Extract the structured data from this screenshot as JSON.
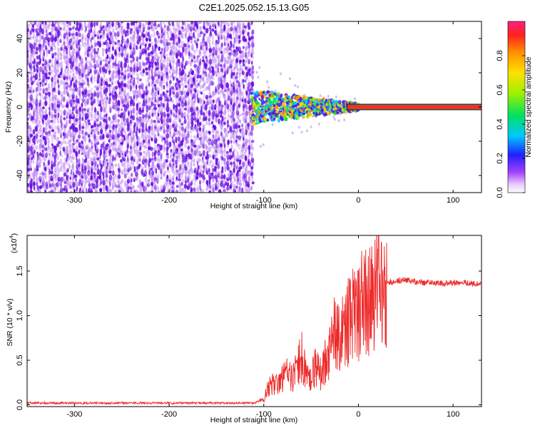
{
  "title": "C2E1.2025.052.15.13.G05",
  "colors": {
    "snr_line": "#ee2a2a",
    "noise": "#7a1fe6",
    "spectral_center": "#ff2a2a"
  },
  "chart_data": [
    {
      "type": "heatmap",
      "title": "C2E1.2025.052.15.13.G05",
      "xlabel": "Height of straight line (km)",
      "ylabel": "Frequency (Hz)",
      "xlim": [
        -350,
        130
      ],
      "ylim": [
        -50,
        50
      ],
      "xticks": [
        -300,
        -200,
        -100,
        0,
        100
      ],
      "xtick_labels": [
        "-300",
        "-200",
        "-100",
        "0",
        "100"
      ],
      "yticks": [
        40,
        20,
        0,
        -20,
        -40
      ],
      "ytick_labels": [
        "40",
        "20",
        "0",
        "-20",
        "-40"
      ],
      "noise_region_x": [
        -350,
        -113
      ],
      "signal_region_x": [
        -113,
        130
      ],
      "signal_center_freq": 0,
      "colorbar": {
        "label": "Normalized spectral amplitude",
        "range": [
          0,
          1
        ],
        "ticks": [
          0.0,
          0.2,
          0.4,
          0.6,
          0.8
        ],
        "tick_labels": [
          "0.0",
          "0.2",
          "0.4",
          "0.6",
          "0.8"
        ]
      }
    },
    {
      "type": "line",
      "xlabel": "Height of straight line (km)",
      "ylabel": "SNR (10 * v/v)",
      "scale_label": "(x10",
      "scale_exp": "4",
      "scale_close": ")",
      "xlim": [
        -350,
        130
      ],
      "ylim": [
        -0.02,
        1.9
      ],
      "xticks": [
        -300,
        -200,
        -100,
        0,
        100
      ],
      "xtick_labels": [
        "-300",
        "-200",
        "-100",
        "0",
        "100"
      ],
      "yticks": [
        0.0,
        0.5,
        1.0,
        1.5
      ],
      "ytick_labels": [
        "0.0",
        "0.5",
        "1.0",
        "1.5"
      ],
      "series": [
        {
          "x": [
            -350,
            -300,
            -250,
            -200,
            -150,
            -110,
            -100,
            -95,
            -90,
            -85,
            -80,
            -75,
            -70,
            -65,
            -60,
            -55,
            -50,
            -45,
            -40,
            -35,
            -30,
            -25,
            -20,
            -15,
            -10,
            -5,
            0,
            5,
            10,
            15,
            20,
            25,
            30,
            40,
            50,
            60,
            70,
            80,
            90,
            100,
            110,
            120,
            130
          ],
          "y": [
            0.02,
            0.02,
            0.02,
            0.02,
            0.02,
            0.02,
            0.06,
            0.2,
            0.25,
            0.22,
            0.3,
            0.35,
            0.3,
            0.4,
            0.55,
            0.3,
            0.28,
            0.45,
            0.35,
            0.5,
            0.6,
            0.8,
            0.7,
            0.9,
            0.95,
            1.1,
            1.0,
            1.2,
            1.1,
            1.25,
            1.3,
            1.33,
            1.36,
            1.39,
            1.4,
            1.38,
            1.37,
            1.37,
            1.36,
            1.37,
            1.37,
            1.36,
            1.35
          ]
        }
      ]
    }
  ]
}
